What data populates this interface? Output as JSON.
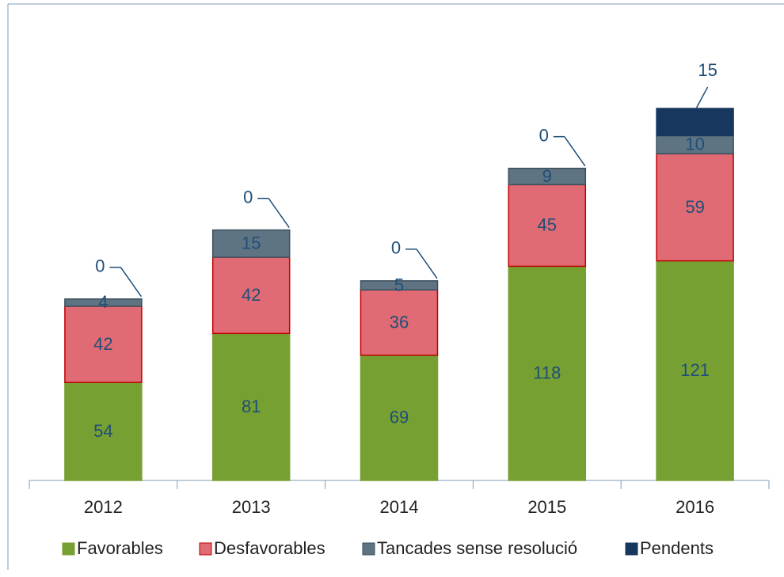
{
  "chart_data": {
    "type": "bar",
    "stacked": true,
    "categories": [
      "2012",
      "2013",
      "2014",
      "2015",
      "2016"
    ],
    "series": [
      {
        "name": "Favorables",
        "color": "#77a033",
        "values": [
          54,
          81,
          69,
          118,
          121
        ]
      },
      {
        "name": "Desfavorables",
        "color": "#e06b74",
        "values": [
          42,
          42,
          36,
          45,
          59
        ]
      },
      {
        "name": "Tancades sense resolució",
        "color": "#5f7482",
        "values": [
          4,
          15,
          5,
          9,
          10
        ]
      },
      {
        "name": "Pendents",
        "color": "#17375e",
        "values": [
          0,
          0,
          0,
          0,
          15
        ]
      }
    ],
    "legend": "bottom"
  }
}
